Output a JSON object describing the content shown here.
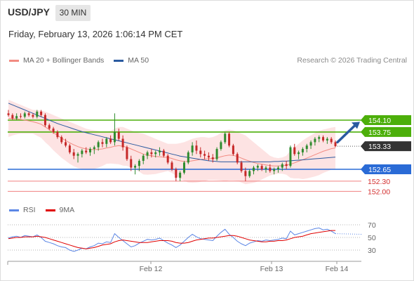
{
  "header": {
    "symbol": "USD/JPY",
    "timeframe": "30 MIN",
    "datetime": "Friday, February 13, 2026 1:06:14 PM CET",
    "copyright": "Research © 2026 Trading Central"
  },
  "legend": {
    "bb_label": "MA 20 + Bollinger Bands",
    "bb_color": "#f28b82",
    "ma50_label": "MA 50",
    "ma50_color": "#2a5aa0",
    "rsi_label": "RSI",
    "rsi_color": "#5b86e5",
    "ma9_label": "9MA",
    "ma9_color": "#e00000"
  },
  "colors": {
    "up": "#2e8b2e",
    "down": "#c62828",
    "resistance": "#4caf0a",
    "support_primary": "#2a6bd6",
    "support_secondary": "#f08080",
    "current": "#333333",
    "band_fill": "#fde3e3",
    "arrow": "#2a5aa0"
  },
  "chart_data": [
    {
      "type": "candlestick",
      "title": "USD/JPY 30 MIN",
      "x_ticks": [
        "Feb 12",
        "Feb 13",
        "Feb 14"
      ],
      "ylim": [
        151.6,
        155.0
      ],
      "grid": false,
      "current_price": "153.33",
      "levels": [
        {
          "label": "154.10",
          "value": 154.1,
          "kind": "resistance"
        },
        {
          "label": "153.75",
          "value": 153.75,
          "kind": "resistance"
        },
        {
          "label": "152.65",
          "value": 152.65,
          "kind": "support"
        },
        {
          "label": "152.30",
          "value": 152.3,
          "kind": "minor-support"
        },
        {
          "label": "152.00",
          "value": 152.0,
          "kind": "minor-support"
        }
      ],
      "ohlc": [
        [
          154.3,
          154.4,
          154.2,
          154.25
        ],
        [
          154.25,
          154.3,
          154.1,
          154.15
        ],
        [
          154.15,
          154.3,
          154.1,
          154.22
        ],
        [
          154.22,
          154.3,
          154.15,
          154.2
        ],
        [
          154.2,
          154.35,
          154.15,
          154.3
        ],
        [
          154.3,
          154.35,
          154.2,
          154.25
        ],
        [
          154.25,
          154.3,
          154.15,
          154.2
        ],
        [
          154.2,
          154.4,
          154.15,
          154.35
        ],
        [
          154.35,
          154.4,
          154.2,
          154.25
        ],
        [
          154.25,
          154.3,
          153.9,
          153.95
        ],
        [
          153.95,
          154.0,
          153.8,
          153.85
        ],
        [
          153.85,
          153.9,
          153.7,
          153.75
        ],
        [
          153.75,
          153.8,
          153.55,
          153.6
        ],
        [
          153.6,
          153.65,
          153.4,
          153.45
        ],
        [
          153.45,
          153.55,
          153.3,
          153.35
        ],
        [
          153.35,
          153.4,
          153.1,
          153.15
        ],
        [
          153.15,
          153.25,
          152.95,
          153.05
        ],
        [
          153.05,
          153.15,
          152.85,
          153.1
        ],
        [
          153.1,
          153.25,
          153.0,
          153.2
        ],
        [
          153.2,
          153.3,
          153.1,
          153.15
        ],
        [
          153.15,
          153.3,
          153.05,
          153.25
        ],
        [
          153.25,
          153.35,
          153.1,
          153.3
        ],
        [
          153.3,
          153.5,
          153.2,
          153.45
        ],
        [
          153.45,
          153.55,
          153.3,
          153.4
        ],
        [
          153.4,
          153.6,
          153.3,
          153.55
        ],
        [
          153.55,
          153.65,
          153.4,
          153.45
        ],
        [
          153.45,
          154.3,
          153.35,
          153.75
        ],
        [
          153.75,
          153.85,
          153.5,
          153.55
        ],
        [
          153.55,
          153.65,
          153.2,
          153.3
        ],
        [
          153.3,
          153.35,
          152.9,
          152.95
        ],
        [
          152.95,
          153.05,
          152.6,
          152.7
        ],
        [
          152.7,
          152.8,
          152.5,
          152.75
        ],
        [
          152.75,
          152.95,
          152.6,
          152.9
        ],
        [
          152.9,
          153.1,
          152.8,
          153.05
        ],
        [
          153.05,
          153.2,
          152.95,
          153.15
        ],
        [
          153.15,
          153.25,
          153.0,
          153.1
        ],
        [
          153.1,
          153.2,
          153.0,
          153.15
        ],
        [
          153.15,
          153.3,
          153.05,
          153.2
        ],
        [
          153.2,
          153.25,
          153.0,
          153.05
        ],
        [
          153.05,
          153.1,
          152.8,
          152.85
        ],
        [
          152.85,
          152.9,
          152.6,
          152.65
        ],
        [
          152.65,
          152.7,
          152.3,
          152.4
        ],
        [
          152.4,
          152.6,
          152.3,
          152.55
        ],
        [
          152.55,
          152.9,
          152.5,
          152.85
        ],
        [
          152.85,
          153.2,
          152.8,
          153.15
        ],
        [
          153.15,
          153.45,
          153.05,
          153.35
        ],
        [
          153.35,
          153.5,
          153.1,
          153.2
        ],
        [
          153.2,
          153.3,
          153.0,
          153.1
        ],
        [
          153.1,
          153.2,
          152.95,
          153.05
        ],
        [
          153.05,
          153.15,
          152.9,
          153.0
        ],
        [
          153.0,
          153.1,
          152.85,
          152.95
        ],
        [
          152.95,
          153.3,
          152.9,
          153.25
        ],
        [
          153.25,
          153.5,
          153.2,
          153.45
        ],
        [
          153.45,
          153.75,
          153.4,
          153.7
        ],
        [
          153.7,
          153.75,
          153.3,
          153.35
        ],
        [
          153.35,
          153.4,
          153.05,
          153.1
        ],
        [
          153.1,
          153.15,
          152.8,
          152.85
        ],
        [
          152.85,
          152.9,
          152.55,
          152.6
        ],
        [
          152.6,
          152.7,
          152.3,
          152.45
        ],
        [
          152.45,
          152.65,
          152.4,
          152.6
        ],
        [
          152.6,
          152.75,
          152.5,
          152.7
        ],
        [
          152.7,
          152.8,
          152.6,
          152.75
        ],
        [
          152.75,
          152.8,
          152.6,
          152.65
        ],
        [
          152.65,
          152.75,
          152.55,
          152.7
        ],
        [
          152.7,
          152.8,
          152.55,
          152.6
        ],
        [
          152.6,
          152.7,
          152.5,
          152.65
        ],
        [
          152.65,
          152.75,
          152.55,
          152.7
        ],
        [
          152.7,
          152.85,
          152.6,
          152.8
        ],
        [
          152.8,
          152.9,
          152.65,
          152.75
        ],
        [
          152.75,
          153.35,
          152.7,
          153.3
        ],
        [
          153.3,
          153.4,
          153.05,
          153.1
        ],
        [
          153.1,
          153.2,
          152.95,
          153.15
        ],
        [
          153.15,
          153.3,
          153.05,
          153.25
        ],
        [
          153.25,
          153.4,
          153.15,
          153.35
        ],
        [
          153.35,
          153.5,
          153.25,
          153.45
        ],
        [
          153.45,
          153.6,
          153.35,
          153.55
        ],
        [
          153.55,
          153.65,
          153.45,
          153.6
        ],
        [
          153.6,
          153.65,
          153.45,
          153.5
        ],
        [
          153.5,
          153.6,
          153.4,
          153.55
        ],
        [
          153.55,
          153.6,
          153.4,
          153.45
        ],
        [
          153.45,
          153.5,
          153.3,
          153.33
        ]
      ],
      "ma20": [
        154.15,
        154.15,
        154.14,
        154.12,
        154.1,
        154.08,
        154.05,
        154.02,
        153.98,
        153.9,
        153.82,
        153.73,
        153.65,
        153.57,
        153.5,
        153.43,
        153.37,
        153.32,
        153.28,
        153.25,
        153.24,
        153.23,
        153.24,
        153.25,
        153.28,
        153.3,
        153.33,
        153.35,
        153.33,
        153.3,
        153.25,
        153.2,
        153.15,
        153.1,
        153.07,
        153.05,
        153.03,
        153.02,
        153.01,
        153.0,
        152.97,
        152.93,
        152.9,
        152.88,
        152.88,
        152.9,
        152.92,
        152.94,
        152.95,
        152.96,
        152.97,
        152.99,
        153.02,
        153.05,
        153.07,
        153.06,
        153.03,
        152.98,
        152.93,
        152.89,
        152.85,
        152.82,
        152.8,
        152.78,
        152.76,
        152.75,
        152.75,
        152.76,
        152.77,
        152.8,
        152.84,
        152.89,
        152.93,
        152.98,
        153.03,
        153.08,
        153.13,
        153.18,
        153.22,
        153.26,
        153.28
      ],
      "bb_upper": [
        154.7,
        154.65,
        154.6,
        154.55,
        154.5,
        154.45,
        154.4,
        154.4,
        154.38,
        154.35,
        154.3,
        154.25,
        154.2,
        154.15,
        154.1,
        154.05,
        154.0,
        153.95,
        153.9,
        153.85,
        153.82,
        153.8,
        153.78,
        153.75,
        153.75,
        153.78,
        153.85,
        153.9,
        153.9,
        153.85,
        153.8,
        153.75,
        153.72,
        153.7,
        153.65,
        153.6,
        153.55,
        153.5,
        153.45,
        153.4,
        153.4,
        153.4,
        153.42,
        153.45,
        153.5,
        153.55,
        153.58,
        153.6,
        153.6,
        153.58,
        153.6,
        153.65,
        153.72,
        153.8,
        153.82,
        153.8,
        153.75,
        153.7,
        153.65,
        153.55,
        153.45,
        153.35,
        153.25,
        153.15,
        153.05,
        153.0,
        152.98,
        153.0,
        153.05,
        153.2,
        153.3,
        153.4,
        153.5,
        153.58,
        153.65,
        153.72,
        153.78,
        153.82,
        153.85,
        153.88,
        153.9
      ],
      "bb_lower": [
        153.6,
        153.65,
        153.68,
        153.7,
        153.7,
        153.7,
        153.7,
        153.64,
        153.58,
        153.45,
        153.34,
        153.21,
        153.1,
        152.99,
        152.9,
        152.81,
        152.74,
        152.69,
        152.66,
        152.65,
        152.66,
        152.66,
        152.7,
        152.75,
        152.81,
        152.82,
        152.81,
        152.8,
        152.76,
        152.75,
        152.7,
        152.65,
        152.58,
        152.5,
        152.49,
        152.5,
        152.51,
        152.54,
        152.57,
        152.6,
        152.54,
        152.46,
        152.38,
        152.31,
        152.26,
        152.25,
        152.26,
        152.28,
        152.3,
        152.34,
        152.34,
        152.33,
        152.32,
        152.3,
        152.32,
        152.32,
        152.31,
        152.26,
        152.21,
        152.23,
        152.25,
        152.29,
        152.35,
        152.41,
        152.47,
        152.5,
        152.52,
        152.52,
        152.49,
        152.4,
        152.38,
        152.38,
        152.36,
        152.38,
        152.41,
        152.44,
        152.48,
        152.54,
        152.59,
        152.64,
        152.66
      ],
      "ma50": [
        154.6,
        154.55,
        154.5,
        154.45,
        154.4,
        154.35,
        154.3,
        154.25,
        154.2,
        154.15,
        154.1,
        154.05,
        154.0,
        153.96,
        153.92,
        153.88,
        153.84,
        153.8,
        153.76,
        153.73,
        153.7,
        153.67,
        153.64,
        153.61,
        153.58,
        153.55,
        153.52,
        153.49,
        153.46,
        153.43,
        153.4,
        153.37,
        153.34,
        153.31,
        153.28,
        153.25,
        153.22,
        153.19,
        153.16,
        153.13,
        153.1,
        153.07,
        153.04,
        153.02,
        153.0,
        152.98,
        152.96,
        152.94,
        152.92,
        152.9,
        152.89,
        152.88,
        152.87,
        152.87,
        152.87,
        152.87,
        152.87,
        152.87,
        152.87,
        152.87,
        152.87,
        152.87,
        152.87,
        152.87,
        152.87,
        152.88,
        152.88,
        152.89,
        152.89,
        152.9,
        152.91,
        152.92,
        152.93,
        152.94,
        152.95,
        152.96,
        152.97,
        152.98,
        152.99,
        153.0,
        153.01
      ]
    },
    {
      "type": "line",
      "title": "RSI",
      "yticks": [
        30,
        50,
        70
      ],
      "ylim": [
        20,
        80
      ],
      "rsi": [
        49,
        51,
        52,
        50,
        53,
        52,
        51,
        54,
        50,
        44,
        42,
        40,
        37,
        35,
        34,
        30,
        28,
        30,
        33,
        32,
        35,
        37,
        41,
        40,
        43,
        42,
        56,
        50,
        45,
        40,
        35,
        37,
        41,
        44,
        47,
        46,
        47,
        49,
        45,
        41,
        38,
        34,
        38,
        44,
        50,
        55,
        51,
        48,
        47,
        46,
        45,
        52,
        58,
        63,
        55,
        50,
        44,
        40,
        37,
        41,
        43,
        45,
        44,
        46,
        45,
        46,
        47,
        49,
        48,
        60,
        54,
        56,
        58,
        60,
        62,
        64,
        65,
        62,
        63,
        60,
        56
      ],
      "ma9": [
        48,
        49,
        50,
        50,
        51,
        51,
        51,
        52,
        51,
        50,
        48,
        46,
        44,
        42,
        40,
        38,
        36,
        34,
        33,
        32,
        33,
        34,
        36,
        38,
        39,
        40,
        43,
        45,
        46,
        45,
        44,
        43,
        42,
        42,
        42,
        43,
        44,
        45,
        45,
        45,
        44,
        42,
        41,
        41,
        42,
        44,
        46,
        47,
        48,
        49,
        49,
        50,
        51,
        52,
        53,
        53,
        52,
        50,
        48,
        46,
        45,
        44,
        43,
        43,
        44,
        44,
        45,
        45,
        46,
        48,
        50,
        51,
        52,
        54,
        56,
        57,
        58,
        59,
        60,
        61,
        61
      ]
    }
  ]
}
